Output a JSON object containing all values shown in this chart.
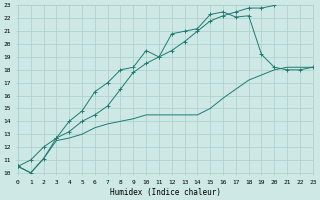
{
  "xlabel": "Humidex (Indice chaleur)",
  "xlim": [
    0,
    23
  ],
  "ylim": [
    10,
    23
  ],
  "xticks": [
    0,
    1,
    2,
    3,
    4,
    5,
    6,
    7,
    8,
    9,
    10,
    11,
    12,
    13,
    14,
    15,
    16,
    17,
    18,
    19,
    20,
    21,
    22,
    23
  ],
  "yticks": [
    10,
    11,
    12,
    13,
    14,
    15,
    16,
    17,
    18,
    19,
    20,
    21,
    22,
    23
  ],
  "bg_color": "#cde8e5",
  "grid_color": "#aacfcc",
  "line_color": "#1e7b72",
  "series_x": [
    [
      0,
      1,
      2,
      3,
      4,
      5,
      6,
      7,
      8,
      9,
      10,
      11,
      12,
      13,
      14,
      15,
      16,
      17,
      18,
      19,
      20,
      21,
      22,
      23
    ],
    [
      0,
      1,
      2,
      3,
      4,
      5,
      6,
      7,
      8,
      9,
      10,
      11,
      12,
      13,
      14,
      15,
      16,
      17,
      18,
      19,
      20,
      21,
      22,
      23
    ],
    [
      0,
      1,
      2,
      3,
      4,
      5,
      6,
      7,
      8,
      9,
      10,
      11,
      12,
      13,
      14,
      15,
      16,
      17,
      18,
      19,
      20
    ]
  ],
  "series_y": [
    [
      10.5,
      10.0,
      11.1,
      12.7,
      14.0,
      14.8,
      16.3,
      17.0,
      18.0,
      18.2,
      19.5,
      19.0,
      20.8,
      21.0,
      21.2,
      22.3,
      22.5,
      22.1,
      22.2,
      19.2,
      18.2,
      18.0,
      18.0,
      18.2
    ],
    [
      10.5,
      10.0,
      11.1,
      12.5,
      12.7,
      13.0,
      13.5,
      13.8,
      14.0,
      14.2,
      14.5,
      14.5,
      14.5,
      14.5,
      14.5,
      15.0,
      15.8,
      16.5,
      17.2,
      17.6,
      18.0,
      18.2,
      18.2,
      18.2
    ],
    [
      10.5,
      11.0,
      12.0,
      12.7,
      13.2,
      14.0,
      14.5,
      15.2,
      16.5,
      17.8,
      18.5,
      19.0,
      19.5,
      20.2,
      21.0,
      21.8,
      22.2,
      22.5,
      22.8,
      22.8,
      23.0
    ]
  ],
  "markers": [
    true,
    false,
    true
  ]
}
